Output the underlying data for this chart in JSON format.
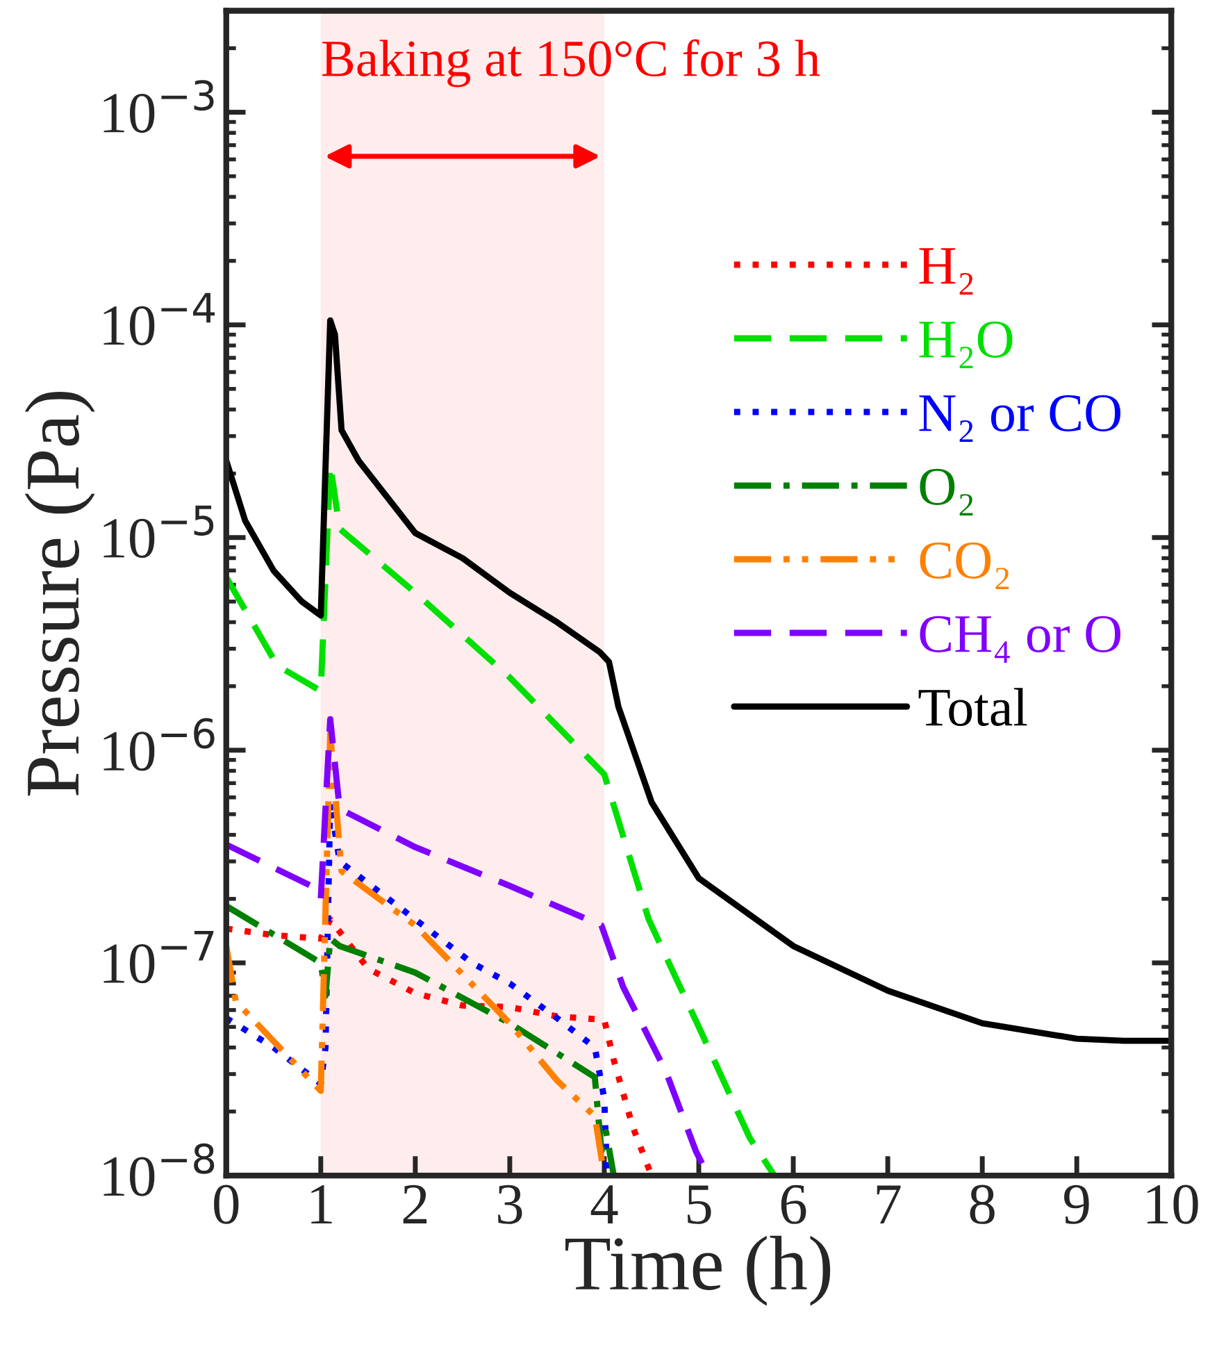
{
  "chart_data": {
    "type": "line",
    "xlabel": "Time (h)",
    "ylabel": "Pressure (Pa)",
    "log": "y",
    "xlim": [
      0,
      10
    ],
    "xticks": [
      0,
      1,
      2,
      3,
      4,
      5,
      6,
      7,
      8,
      9,
      10
    ],
    "ylim": [
      1e-08,
      0.003
    ],
    "yticks": [
      {
        "value": 1e-08,
        "label": "10$^{−8}$"
      },
      {
        "value": 1e-07,
        "label": "10$^{−7}$"
      },
      {
        "value": 1e-06,
        "label": "10$^{−6}$"
      },
      {
        "value": 1e-05,
        "label": "10$^{−5}$"
      },
      {
        "value": 0.0001,
        "label": "10$^{−4}$"
      },
      {
        "value": 0.001,
        "label": "10$^{−3}$"
      }
    ],
    "grid": false,
    "legend": "top right",
    "bands": [
      {
        "axis": "x",
        "from": 1,
        "to": 4,
        "label": "Baking at 150°C for 3 h",
        "color": "#ff0000"
      }
    ],
    "series": [
      {
        "name": "H₂",
        "color": "#ff0000",
        "line_style": "dotted",
        "x": [
          0,
          0.5,
          1.0,
          1.1,
          1.5,
          2.0,
          2.5,
          3.0,
          3.5,
          4.0,
          4.1,
          4.3,
          4.5
        ],
        "values": [
          1.45e-07,
          1.35e-07,
          1.3e-07,
          1.6e-07,
          9.4e-08,
          7.2e-08,
          6.3e-08,
          6.2e-08,
          5.6e-08,
          5.4e-08,
          3.5e-08,
          1.7e-08,
          1e-08
        ]
      },
      {
        "name": "H₂O",
        "color": "#00e000",
        "line_style": "dashed",
        "x": [
          0,
          0.54,
          1.0,
          1.1,
          1.2,
          2.0,
          3.0,
          4.0,
          4.47,
          5.0,
          5.54,
          5.8
        ],
        "values": [
          6.5e-06,
          2.5e-06,
          1.9e-06,
          2.2e-05,
          1.1e-05,
          5.5e-06,
          2.2e-06,
          7.7e-07,
          1.6e-07,
          5e-08,
          1.5e-08,
          1e-08
        ]
      },
      {
        "name": "N₂ or CO",
        "color": "#0000ff",
        "line_style": "dotted",
        "x": [
          0,
          0.5,
          1.0,
          1.05,
          1.1,
          1.2,
          2.0,
          2.6,
          3.0,
          3.5,
          3.9,
          4.0,
          4.03
        ],
        "values": [
          5.5e-08,
          4e-08,
          2.7e-08,
          4e-08,
          5.7e-07,
          3e-07,
          1.6e-07,
          1e-07,
          8e-08,
          5.5e-08,
          4e-08,
          2.3e-08,
          1e-08
        ]
      },
      {
        "name": "O₂",
        "color": "#008000",
        "line_style": "dashdot",
        "x": [
          0,
          1.0,
          1.05,
          1.1,
          1.2,
          2.0,
          3.0,
          3.9,
          3.97,
          4.02,
          4.1
        ],
        "values": [
          1.85e-07,
          1e-07,
          7e-08,
          1.3e-07,
          1.2e-07,
          9e-08,
          5.2e-08,
          2.9e-08,
          1.3e-08,
          1.6e-08,
          1e-08
        ]
      },
      {
        "name": "CO₂",
        "color": "#ff8000",
        "line_style": "dashdotdot",
        "x": [
          0,
          0.1,
          1.0,
          1.1,
          1.22,
          2.0,
          3.0,
          3.5,
          3.9,
          4.0
        ],
        "values": [
          1.2e-07,
          6.6e-08,
          2.5e-08,
          1.2e-06,
          2.7e-07,
          1.5e-07,
          5.2e-08,
          2.8e-08,
          1.9e-08,
          1e-08
        ]
      },
      {
        "name": "CH₄ or O",
        "color": "#8000ff",
        "line_style": "dashed",
        "x": [
          0,
          0.9,
          1.0,
          1.1,
          1.2,
          2.0,
          3.0,
          3.97,
          4.2,
          4.65,
          4.97,
          5.1
        ],
        "values": [
          3.6e-07,
          2.3e-07,
          2e-07,
          1.4e-06,
          5.3e-07,
          3.5e-07,
          2.3e-07,
          1.5e-07,
          7.7e-08,
          3.1e-08,
          1.3e-08,
          1e-08
        ]
      },
      {
        "name": "Total",
        "color": "#000000",
        "line_style": "solid",
        "x": [
          0,
          0.2,
          0.5,
          0.8,
          1.0,
          1.1,
          1.15,
          1.22,
          1.4,
          2.0,
          2.5,
          3.0,
          3.5,
          3.95,
          4.05,
          4.15,
          4.5,
          5.0,
          6.0,
          7.0,
          8.0,
          9.0,
          9.5,
          10.0
        ],
        "values": [
          2.3e-05,
          1.2e-05,
          7e-06,
          5e-06,
          4.3e-06,
          0.000105,
          9e-05,
          3.2e-05,
          2.3e-05,
          1.05e-05,
          8e-06,
          5.5e-06,
          4e-06,
          2.9e-06,
          2.6e-06,
          1.6e-06,
          5.7e-07,
          2.5e-07,
          1.2e-07,
          7.4e-08,
          5.2e-08,
          4.4e-08,
          4.3e-08,
          4.3e-08
        ]
      }
    ]
  }
}
